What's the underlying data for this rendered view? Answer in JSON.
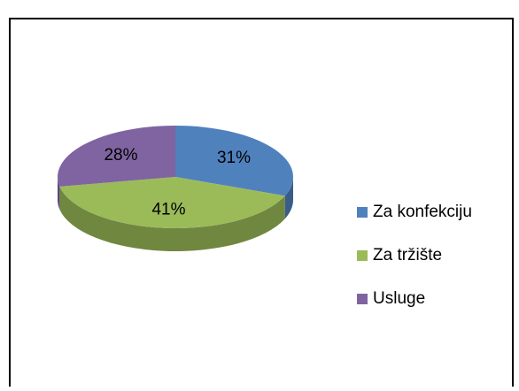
{
  "chart_data": {
    "type": "pie3d",
    "categories": [
      "Za konfekciju",
      "Za tržište",
      "Usluge"
    ],
    "values": [
      31,
      41,
      28
    ],
    "value_labels": [
      "31%",
      "41%",
      "28%"
    ],
    "colors": [
      "#4f81bd",
      "#9bbb59",
      "#8064a2"
    ],
    "legend": "right"
  }
}
